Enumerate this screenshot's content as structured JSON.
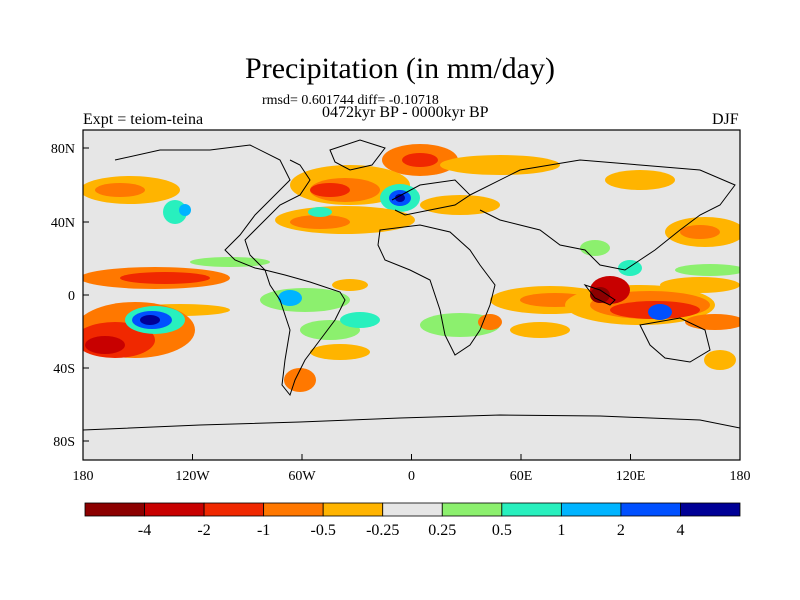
{
  "header": {
    "title": "Precipitation (in mm/day)",
    "stats": "rmsd= 0.601744 diff= -0.10718",
    "period": "0472kyr BP - 0000kyr BP",
    "experiment": "Expt = teiom-teina",
    "season": "DJF"
  },
  "axes": {
    "lon_ticks": [
      "180",
      "120W",
      "60W",
      "0",
      "60E",
      "120E",
      "180"
    ],
    "lat_ticks": [
      "80N",
      "40N",
      "0",
      "40S",
      "80S"
    ]
  },
  "colorbar": {
    "colors": [
      "#8c0000",
      "#c80000",
      "#f02800",
      "#ff7800",
      "#ffb400",
      "#e6e6e6",
      "#8cf06e",
      "#28f0be",
      "#00b4ff",
      "#0050ff",
      "#000096"
    ],
    "labels": [
      "-4",
      "-2",
      "-1",
      "-0.5",
      "-0.25",
      "0.25",
      "0.5",
      "1",
      "2",
      "4"
    ]
  },
  "palette": {
    "background": "#e6e6e6",
    "coast": "#000000"
  }
}
